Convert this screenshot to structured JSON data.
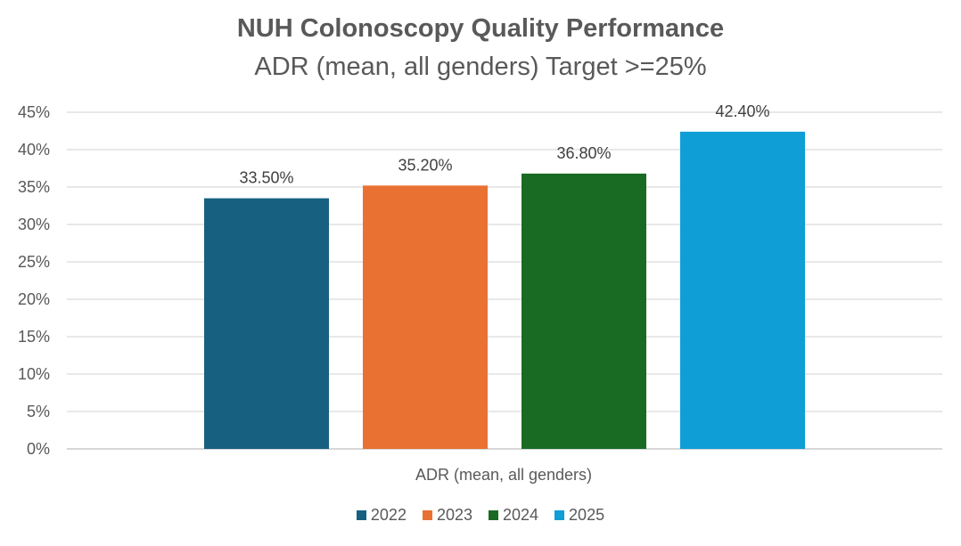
{
  "chart_data": {
    "type": "bar",
    "title": "NUH Colonoscopy Quality Performance",
    "subtitle": "ADR (mean, all genders) Target >=25%",
    "xlabel": "ADR (mean, all genders)",
    "ylabel": "",
    "category": "ADR (mean, all genders)",
    "ylim": [
      0,
      45
    ],
    "yticks": [
      0,
      5,
      10,
      15,
      20,
      25,
      30,
      35,
      40,
      45
    ],
    "ytick_labels": [
      "0%",
      "5%",
      "10%",
      "15%",
      "20%",
      "25%",
      "30%",
      "35%",
      "40%",
      "45%"
    ],
    "grid": true,
    "legend_position": "bottom",
    "series": [
      {
        "name": "2022",
        "value": 33.5,
        "label": "33.50%",
        "color": "#17607f"
      },
      {
        "name": "2023",
        "value": 35.2,
        "label": "35.20%",
        "color": "#e97132"
      },
      {
        "name": "2024",
        "value": 36.8,
        "label": "36.80%",
        "color": "#196b24"
      },
      {
        "name": "2025",
        "value": 42.4,
        "label": "42.40%",
        "color": "#0f9ed5"
      }
    ]
  }
}
